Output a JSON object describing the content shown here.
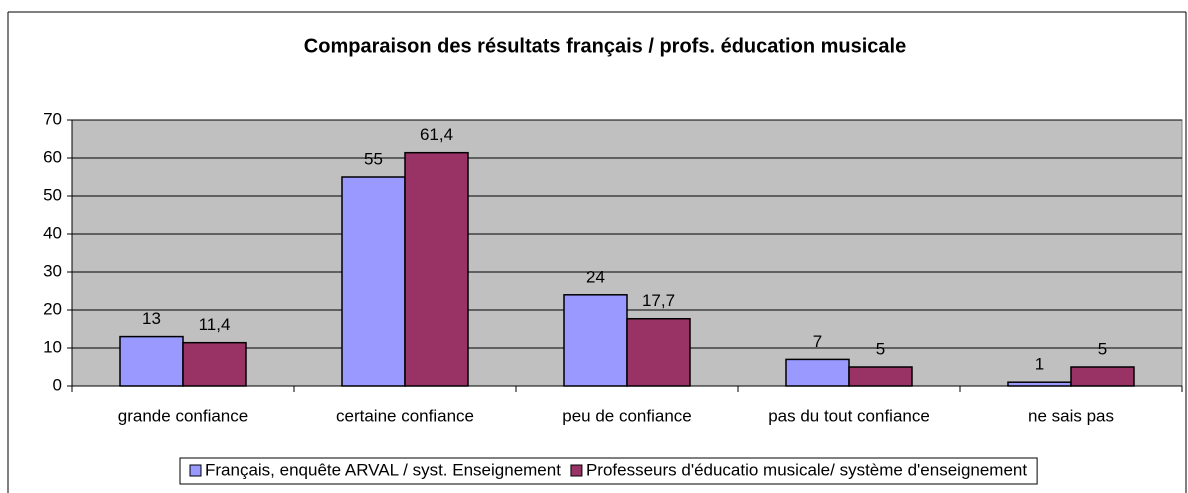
{
  "chart_data": {
    "type": "bar",
    "title": "Comparaison des résultats français / profs. éducation musicale",
    "categories": [
      "grande confiance",
      "certaine confiance",
      "peu de confiance",
      "pas du tout confiance",
      "ne sais pas"
    ],
    "series": [
      {
        "name": "Français, enquête ARVAL / syst. Enseignement",
        "color": "#9999ff",
        "values": [
          13,
          55,
          24,
          7,
          1
        ],
        "value_labels": [
          "13",
          "55",
          "24",
          "7",
          "1"
        ]
      },
      {
        "name": "Professeurs d'éducatio musicale/ système d'enseignement",
        "color": "#993366",
        "values": [
          11.4,
          61.4,
          17.7,
          5,
          5
        ],
        "value_labels": [
          "11,4",
          "61,4",
          "17,7",
          "5",
          "5"
        ]
      }
    ],
    "ylim": [
      0,
      70
    ],
    "yticks": [
      0,
      10,
      20,
      30,
      40,
      50,
      60,
      70
    ],
    "grid": true,
    "legend": "bottom",
    "plot_background": "#c0c0c0"
  }
}
